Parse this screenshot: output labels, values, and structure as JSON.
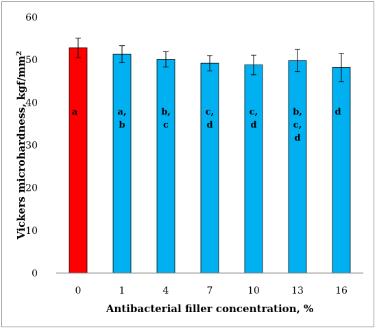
{
  "chart_data": {
    "type": "bar",
    "xlabel": "Antibacterial filler concentration, %",
    "ylabel_main": "Vickers microhardness, kgf/mm",
    "ylabel_sup": "2",
    "ylim": [
      0,
      60
    ],
    "yticks": [
      "0",
      "10",
      "20",
      "30",
      "40",
      "50",
      "60"
    ],
    "categories": [
      "0",
      "1",
      "4",
      "7",
      "10",
      "13",
      "16"
    ],
    "values": [
      52.8,
      51.3,
      50.1,
      49.2,
      48.8,
      49.8,
      48.2
    ],
    "errors": [
      2.3,
      2.0,
      1.8,
      1.8,
      2.3,
      2.6,
      3.3
    ],
    "colors": [
      "#ff0000",
      "#00b0f0",
      "#00b0f0",
      "#00b0f0",
      "#00b0f0",
      "#00b0f0",
      "#00b0f0"
    ],
    "group_labels": [
      [
        "a"
      ],
      [
        "a,",
        "b"
      ],
      [
        "b,",
        "c"
      ],
      [
        "c,",
        "d"
      ],
      [
        "c,",
        "d"
      ],
      [
        "b,",
        "c,",
        "d"
      ],
      [
        "d"
      ]
    ],
    "grid": false,
    "legend": "none"
  }
}
